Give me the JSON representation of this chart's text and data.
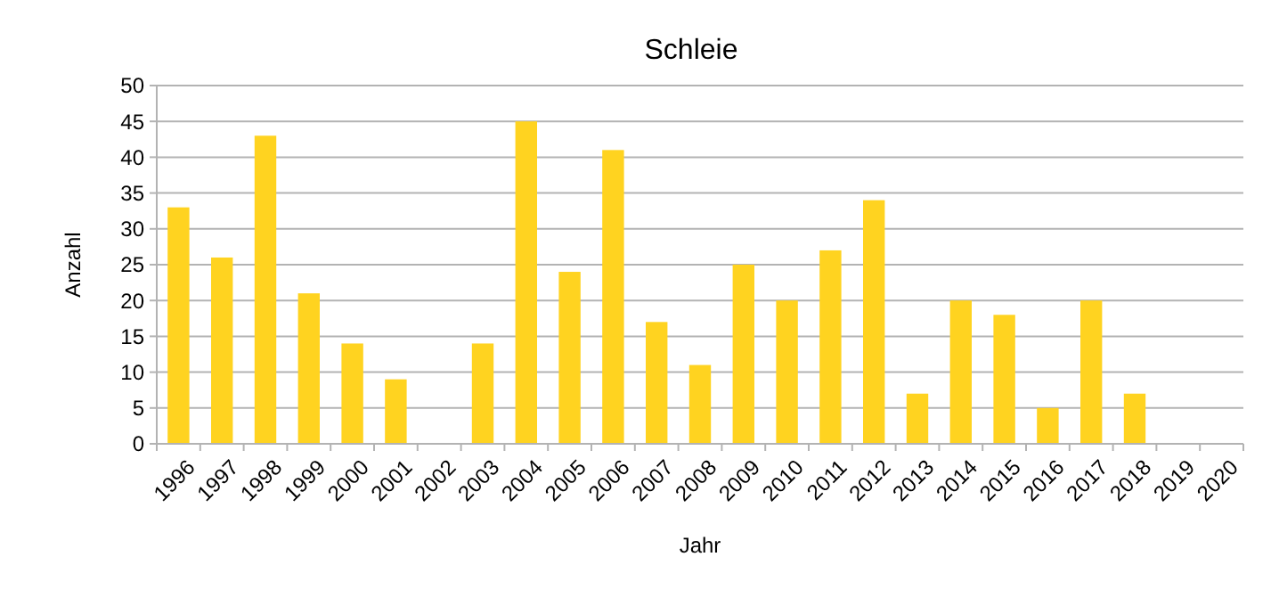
{
  "chart_data": {
    "type": "bar",
    "title": "Schleie",
    "xlabel": "Jahr",
    "ylabel": "Anzahl",
    "categories": [
      "1996",
      "1997",
      "1998",
      "1999",
      "2000",
      "2001",
      "2002",
      "2003",
      "2004",
      "2005",
      "2006",
      "2007",
      "2008",
      "2009",
      "2010",
      "2011",
      "2012",
      "2013",
      "2014",
      "2015",
      "2016",
      "2017",
      "2018",
      "2019",
      "2020"
    ],
    "values": [
      33,
      26,
      43,
      21,
      14,
      9,
      0,
      14,
      45,
      24,
      41,
      17,
      11,
      25,
      20,
      27,
      34,
      7,
      20,
      18,
      5,
      20,
      7,
      0,
      0
    ],
    "color": "#ffd320",
    "ylim": [
      0,
      50
    ],
    "yticks": [
      0,
      5,
      10,
      15,
      20,
      25,
      30,
      35,
      40,
      45,
      50
    ],
    "grid": "y"
  }
}
